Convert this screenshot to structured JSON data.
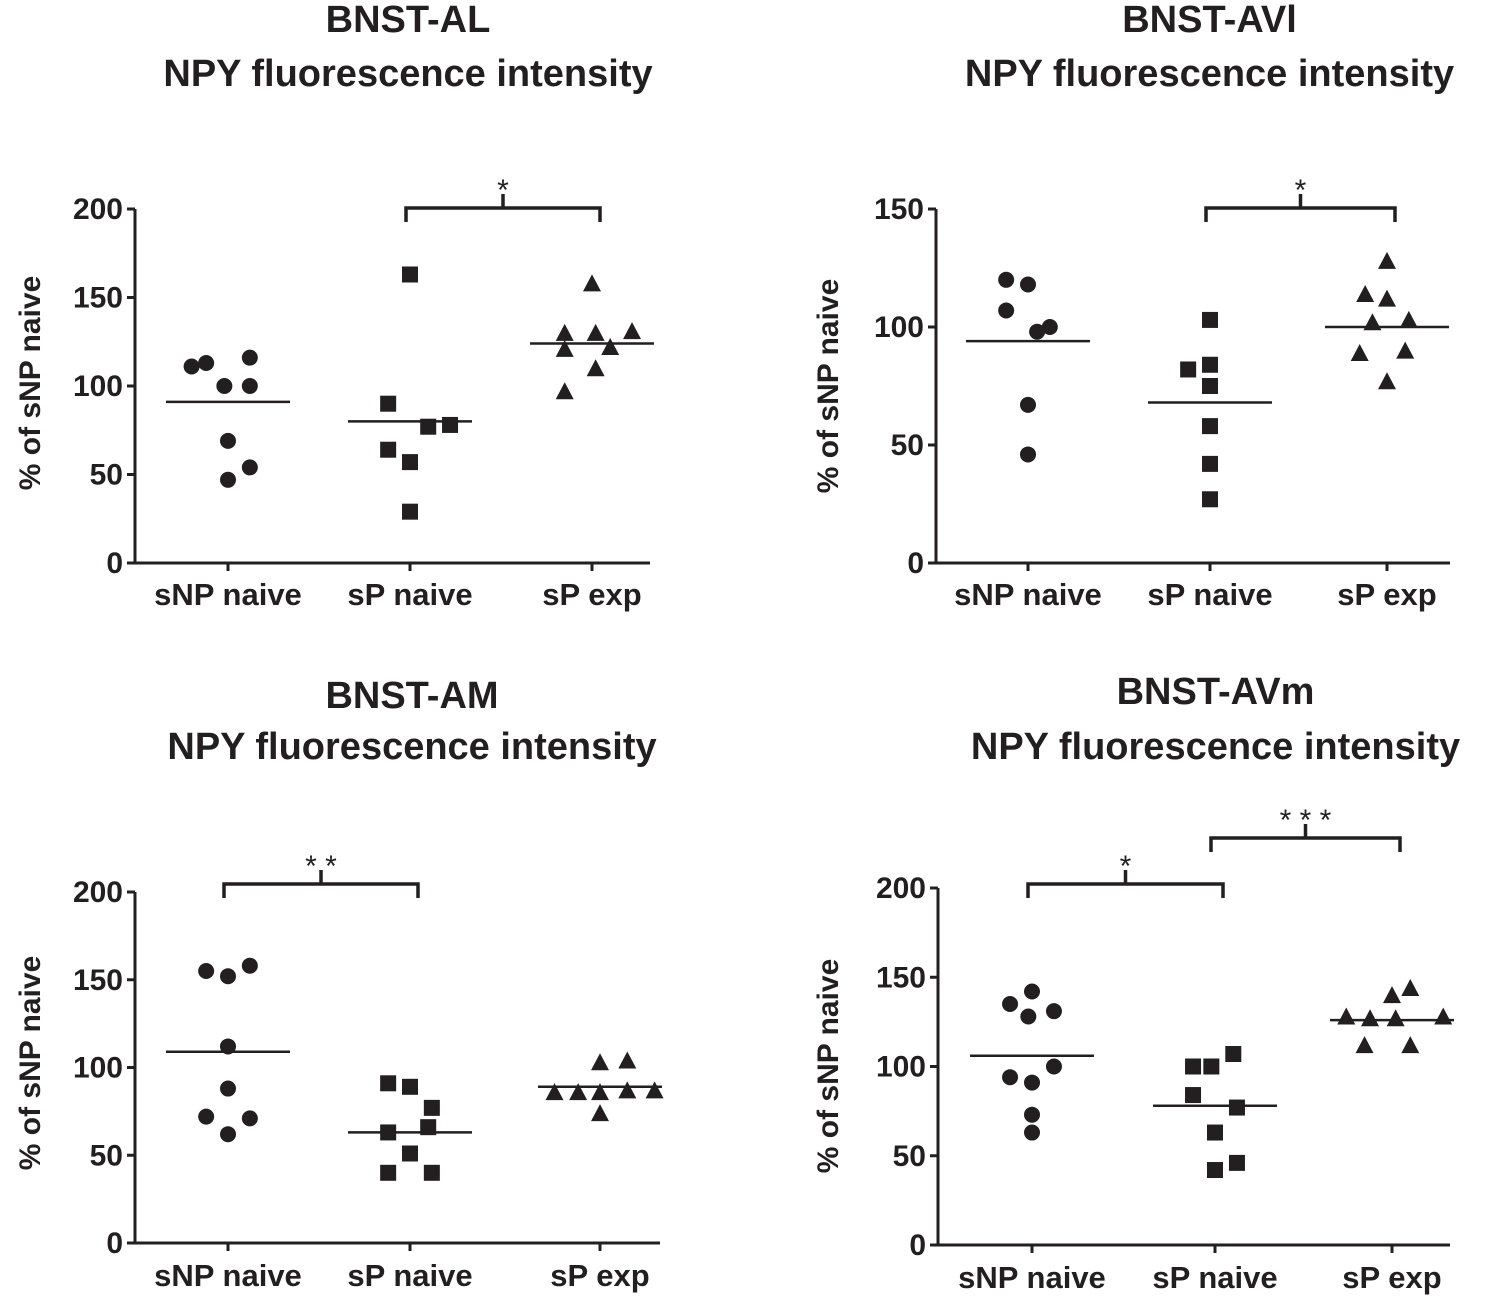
{
  "chart_data": [
    {
      "id": "al",
      "type": "scatter",
      "title": "BNST-AL",
      "subtitle": "NPY fluorescence intensity",
      "ylabel": "% of sNP naive",
      "xlabel": "",
      "ylim": [
        0,
        200
      ],
      "yticks": [
        "0",
        "50",
        "100",
        "150",
        "200"
      ],
      "categories": [
        "sNP naive",
        "sP naive",
        "sP exp"
      ],
      "series": [
        {
          "name": "sNP naive",
          "marker": "circle",
          "mean": 91,
          "points": [
            [
              -0.2,
              111
            ],
            [
              -0.12,
              113
            ],
            [
              0.12,
              116
            ],
            [
              -0.02,
              100
            ],
            [
              0.12,
              100
            ],
            [
              0,
              69
            ],
            [
              0.12,
              54
            ],
            [
              0,
              47
            ]
          ]
        },
        {
          "name": "sP naive",
          "marker": "square",
          "mean": 80,
          "points": [
            [
              0,
              163
            ],
            [
              -0.12,
              90
            ],
            [
              0.1,
              77
            ],
            [
              0.22,
              78
            ],
            [
              -0.12,
              64
            ],
            [
              0,
              57
            ],
            [
              0,
              29
            ]
          ]
        },
        {
          "name": "sP exp",
          "marker": "triangle",
          "mean": 124,
          "points": [
            [
              0,
              158
            ],
            [
              -0.15,
              130
            ],
            [
              0.02,
              130
            ],
            [
              0.22,
              131
            ],
            [
              -0.15,
              121
            ],
            [
              0.1,
              122
            ],
            [
              0.02,
              110
            ],
            [
              -0.15,
              97
            ]
          ]
        }
      ],
      "significance": [
        {
          "from": 1,
          "to": 2,
          "label": "*"
        }
      ]
    },
    {
      "id": "avl",
      "type": "scatter",
      "title": "BNST-AVl",
      "subtitle": "NPY fluorescence intensity",
      "ylabel": "% of sNP naive",
      "xlabel": "",
      "ylim": [
        0,
        150
      ],
      "yticks": [
        "0",
        "50",
        "100",
        "150"
      ],
      "categories": [
        "sNP naive",
        "sP naive",
        "sP exp"
      ],
      "series": [
        {
          "name": "sNP naive",
          "marker": "circle",
          "mean": 94,
          "points": [
            [
              -0.12,
              120
            ],
            [
              0,
              118
            ],
            [
              -0.12,
              107
            ],
            [
              0.05,
              98
            ],
            [
              0.12,
              100
            ],
            [
              0,
              67
            ],
            [
              0,
              46
            ]
          ]
        },
        {
          "name": "sP naive",
          "marker": "square",
          "mean": 68,
          "points": [
            [
              0,
              103
            ],
            [
              -0.12,
              82
            ],
            [
              0,
              84
            ],
            [
              0,
              75
            ],
            [
              0,
              58
            ],
            [
              0,
              42
            ],
            [
              0,
              27
            ]
          ]
        },
        {
          "name": "sP exp",
          "marker": "triangle",
          "mean": 100,
          "points": [
            [
              0,
              128
            ],
            [
              -0.12,
              114
            ],
            [
              0,
              112
            ],
            [
              -0.08,
              102
            ],
            [
              0.12,
              103
            ],
            [
              -0.15,
              89
            ],
            [
              0.1,
              90
            ],
            [
              0,
              77
            ]
          ]
        }
      ],
      "significance": [
        {
          "from": 1,
          "to": 2,
          "label": "*"
        }
      ]
    },
    {
      "id": "am",
      "type": "scatter",
      "title": "BNST-AM",
      "subtitle": "NPY fluorescence intensity",
      "ylabel": "% of sNP naive",
      "xlabel": "",
      "ylim": [
        0,
        200
      ],
      "yticks": [
        "0",
        "50",
        "100",
        "150",
        "200"
      ],
      "categories": [
        "sNP naive",
        "sP naive",
        "sP exp"
      ],
      "series": [
        {
          "name": "sNP naive",
          "marker": "circle",
          "mean": 109,
          "points": [
            [
              -0.12,
              155
            ],
            [
              0,
              152
            ],
            [
              0.12,
              158
            ],
            [
              0,
              112
            ],
            [
              0,
              88
            ],
            [
              -0.12,
              72
            ],
            [
              0.12,
              71
            ],
            [
              0,
              62
            ]
          ]
        },
        {
          "name": "sP naive",
          "marker": "square",
          "mean": 63,
          "points": [
            [
              -0.12,
              91
            ],
            [
              0,
              89
            ],
            [
              0.12,
              77
            ],
            [
              -0.12,
              63
            ],
            [
              0.1,
              66
            ],
            [
              0,
              51
            ],
            [
              -0.12,
              40
            ],
            [
              0.12,
              40
            ]
          ]
        },
        {
          "name": "sP exp",
          "marker": "triangle",
          "mean": 89,
          "points": [
            [
              0,
              103
            ],
            [
              0.15,
              104
            ],
            [
              -0.25,
              86
            ],
            [
              -0.12,
              86
            ],
            [
              0,
              86
            ],
            [
              0.15,
              87
            ],
            [
              0.3,
              87
            ],
            [
              0,
              74
            ]
          ]
        }
      ],
      "significance": [
        {
          "from": 0,
          "to": 1,
          "label": "* *"
        }
      ]
    },
    {
      "id": "avm",
      "type": "scatter",
      "title": "BNST-AVm",
      "subtitle": "NPY fluorescence intensity",
      "ylabel": "% of sNP naive",
      "xlabel": "",
      "ylim": [
        0,
        200
      ],
      "yticks": [
        "0",
        "50",
        "100",
        "150",
        "200"
      ],
      "categories": [
        "sNP naive",
        "sP naive",
        "sP exp"
      ],
      "series": [
        {
          "name": "sNP naive",
          "marker": "circle",
          "mean": 106,
          "points": [
            [
              -0.12,
              135
            ],
            [
              0,
              142
            ],
            [
              0.12,
              131
            ],
            [
              -0.02,
              128
            ],
            [
              -0.12,
              94
            ],
            [
              0,
              91
            ],
            [
              0.12,
              100
            ],
            [
              0,
              73
            ],
            [
              0,
              63
            ]
          ]
        },
        {
          "name": "sP naive",
          "marker": "square",
          "mean": 78,
          "points": [
            [
              0.1,
              107
            ],
            [
              -0.12,
              100
            ],
            [
              -0.02,
              100
            ],
            [
              -0.12,
              84
            ],
            [
              0.12,
              77
            ],
            [
              0,
              63
            ],
            [
              0.12,
              46
            ],
            [
              0,
              42
            ]
          ]
        },
        {
          "name": "sP exp",
          "marker": "triangle",
          "mean": 126,
          "points": [
            [
              0.1,
              144
            ],
            [
              0,
              140
            ],
            [
              -0.25,
              128
            ],
            [
              -0.12,
              127
            ],
            [
              0.02,
              127
            ],
            [
              0.28,
              128
            ],
            [
              -0.15,
              112
            ],
            [
              0.1,
              112
            ]
          ]
        }
      ],
      "significance": [
        {
          "from": 0,
          "to": 1,
          "label": "*"
        },
        {
          "from": 1,
          "to": 2,
          "label": "* * *"
        }
      ]
    }
  ]
}
